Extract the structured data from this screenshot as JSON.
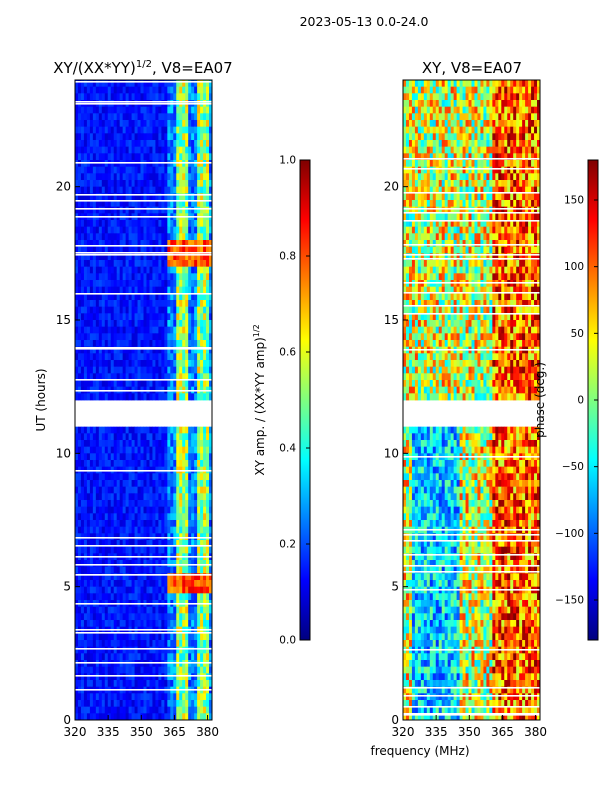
{
  "figure": {
    "suptitle": "2023-05-13 0.0-24.0",
    "xlabel": "frequency (MHz)",
    "ylabel": "UT (hours)"
  },
  "chart_data": [
    {
      "type": "heatmap",
      "title_main": "XY/(XX*YY)",
      "title_sup": "1/2",
      "title_rest": ", V8=EA07",
      "x": {
        "range": [
          320,
          382
        ],
        "ticks": [
          320,
          335,
          350,
          365,
          380
        ]
      },
      "y": {
        "range": [
          0,
          24
        ],
        "ticks": [
          0,
          5,
          10,
          15,
          20
        ]
      },
      "colorbar": {
        "label_main": "XY amp. / (XX*YY amp)",
        "label_sup": "1/2",
        "range": [
          0.0,
          1.0
        ],
        "ticks": [
          "0.0",
          "0.2",
          "0.4",
          "0.6",
          "0.8",
          "1.0"
        ]
      },
      "data_gaps_hours": [
        [
          11.0,
          12.1
        ]
      ],
      "feature": "low amplitude (~0.05-0.15) across 320-362 MHz; elevated amplitude (0.4-0.9) in bands 363-381 MHz, peaks near 5.2h and 17.5h"
    },
    {
      "type": "heatmap",
      "title": "XY, V8=EA07",
      "x": {
        "range": [
          320,
          382
        ],
        "ticks": [
          320,
          335,
          350,
          365,
          380
        ]
      },
      "y": {
        "range": [
          0,
          24
        ],
        "ticks": [
          0,
          5,
          10,
          15,
          20
        ]
      },
      "colorbar": {
        "label": "phase (deg.)",
        "range": [
          -180,
          180
        ],
        "ticks": [
          "−150",
          "−100",
          "−50",
          "0",
          "50",
          "100",
          "150"
        ]
      },
      "data_gaps_hours": [
        [
          11.0,
          12.1
        ]
      ],
      "feature": "phase varies widely; negative phases dominate 325-345 MHz below 11h, large positive phases 360-380 MHz"
    }
  ]
}
